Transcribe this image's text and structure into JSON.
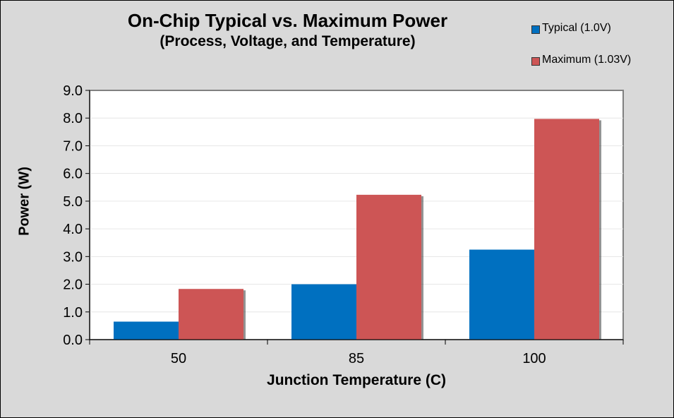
{
  "chart_data": {
    "type": "bar",
    "title": "On-Chip Typical vs. Maximum Power",
    "subtitle": "(Process, Voltage, and Temperature)",
    "xlabel": "Junction Temperature (C)",
    "ylabel": "Power (W)",
    "categories": [
      "50",
      "85",
      "100"
    ],
    "series": [
      {
        "name": "Typical (1.0V)",
        "values": [
          0.65,
          2.0,
          3.25
        ],
        "color": "#0070c0"
      },
      {
        "name": "Maximum (1.03V)",
        "values": [
          1.83,
          5.23,
          7.97
        ],
        "color": "#cd5555"
      }
    ],
    "ylim": [
      0,
      9
    ],
    "yticks": [
      "0.0",
      "1.0",
      "2.0",
      "3.0",
      "4.0",
      "5.0",
      "6.0",
      "7.0",
      "8.0",
      "9.0"
    ],
    "grid": true,
    "legend": "top-right"
  }
}
